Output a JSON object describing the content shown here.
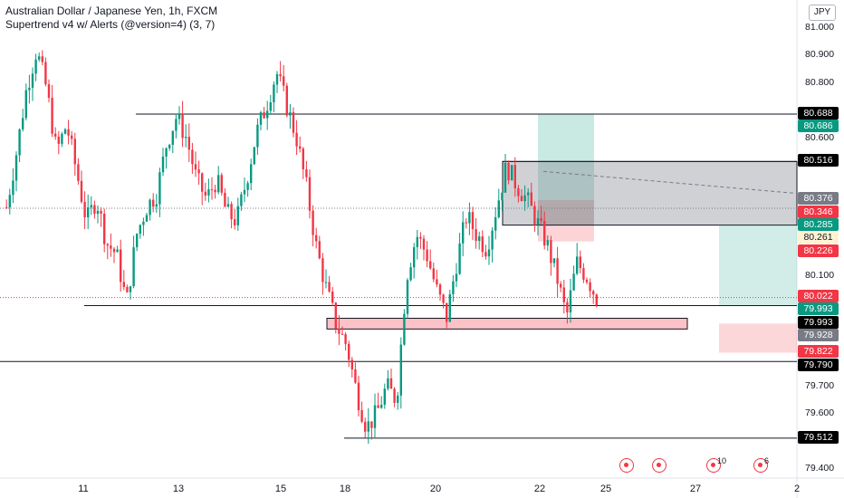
{
  "title": "Australian Dollar / Japanese Yen, 1h, FXCM",
  "indicator": "Supertrend v4 w/ Alerts (@version=4) (3, 7)",
  "currency": "JPY",
  "chart_data": {
    "type": "candlestick",
    "ylim": [
      79.38,
      81.05
    ],
    "y_ticks": [
      "81.000",
      "80.900",
      "80.800",
      "80.600",
      "80.100",
      "79.700",
      "79.600",
      "79.400"
    ],
    "x_ticks": [
      "11",
      "13",
      "15",
      "18",
      "20",
      "22",
      "25",
      "27",
      "2"
    ],
    "price_path": [
      80.35,
      80.55,
      80.78,
      80.92,
      80.78,
      80.55,
      80.65,
      80.48,
      80.3,
      80.38,
      80.22,
      80.18,
      80.0,
      80.25,
      80.35,
      80.4,
      80.58,
      80.68,
      80.6,
      80.45,
      80.38,
      80.45,
      80.33,
      80.3,
      80.45,
      80.62,
      80.72,
      80.84,
      80.72,
      80.6,
      80.42,
      80.2,
      80.05,
      79.92,
      79.85,
      79.68,
      79.55,
      79.6,
      79.7,
      79.65,
      80.1,
      80.25,
      80.18,
      80.05,
      79.95,
      80.15,
      80.32,
      80.25,
      80.2,
      80.35,
      80.5,
      80.43,
      80.38,
      80.3,
      80.22,
      80.1,
      79.95,
      80.15,
      80.1,
      80.02
    ],
    "horizontal_lines": [
      {
        "value": 80.688,
        "label": "80.688"
      },
      {
        "value": 80.516,
        "label": "80.516"
      },
      {
        "value": 79.993,
        "label": "79.993"
      },
      {
        "value": 79.79,
        "label": "79.790"
      },
      {
        "value": 79.512,
        "label": "79.512"
      }
    ],
    "price_badges": [
      {
        "label": "80.688",
        "bg": "#000000",
        "fg": "#ffffff"
      },
      {
        "label": "80.686",
        "bg": "#089981",
        "fg": "#ffffff"
      },
      {
        "label": "80.516",
        "bg": "#000000",
        "fg": "#ffffff"
      },
      {
        "label": "80.376",
        "bg": "#787b86",
        "fg": "#ffffff"
      },
      {
        "label": "80.346",
        "bg": "#f23645",
        "fg": "#ffffff"
      },
      {
        "label": "80.285",
        "bg": "#089981",
        "fg": "#ffffff"
      },
      {
        "label": "80.261",
        "bg": "#fff3d4",
        "fg": "#131722"
      },
      {
        "label": "80.226",
        "bg": "#f23645",
        "fg": "#ffffff"
      },
      {
        "label": "80.022",
        "bg": "#f23645",
        "fg": "#ffffff"
      },
      {
        "label": "79.993",
        "bg": "#089981",
        "fg": "#ffffff"
      },
      {
        "label": "79.993",
        "bg": "#000000",
        "fg": "#ffffff"
      },
      {
        "label": "79.928",
        "bg": "#787b86",
        "fg": "#ffffff"
      },
      {
        "label": "79.822",
        "bg": "#f23645",
        "fg": "#ffffff"
      },
      {
        "label": "79.790",
        "bg": "#000000",
        "fg": "#ffffff"
      },
      {
        "label": "79.512",
        "bg": "#000000",
        "fg": "#ffffff"
      }
    ],
    "alerts": [
      {
        "label": ""
      },
      {
        "label": ""
      },
      {
        "label": "10"
      },
      {
        "label": "6"
      }
    ],
    "colors": {
      "up": "#089981",
      "down": "#f23645",
      "line": "#131722"
    }
  }
}
